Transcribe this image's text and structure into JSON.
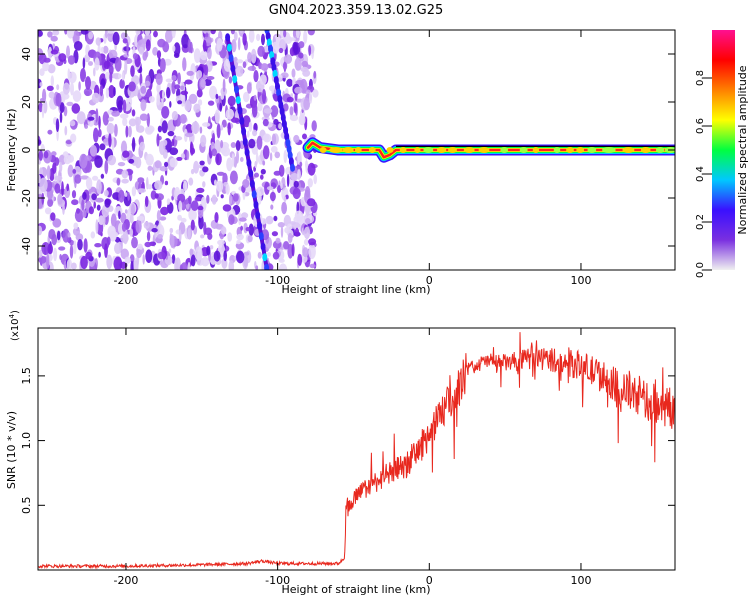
{
  "title": "GN04.2023.359.13.02.G25",
  "chart_data": [
    {
      "type": "heatmap",
      "xlabel": "Height of straight line (km)",
      "ylabel": "Frequency (Hz)",
      "xlim": [
        -258,
        162
      ],
      "ylim": [
        -50,
        50
      ],
      "x_ticks": [
        -200,
        -100,
        0,
        100
      ],
      "y_ticks": [
        -40,
        -20,
        0,
        20,
        40
      ],
      "colorbar": {
        "label": "Normalized spectral amplitude",
        "range": [
          0,
          1
        ],
        "ticks": [
          0.0,
          0.2,
          0.4,
          0.6,
          0.8
        ],
        "colormap": [
          "#f0f0f0",
          "#7a30e0",
          "#3a10ff",
          "#00c8ff",
          "#00ff40",
          "#ffff00",
          "#ff8000",
          "#ff0000",
          "#ff1090"
        ]
      },
      "noise_region_x": [
        -258,
        -75
      ],
      "diagonal_traces": [
        {
          "x": [
            -133,
            -107
          ],
          "y": [
            47,
            -50
          ]
        },
        {
          "x": [
            -107,
            -90
          ],
          "y": [
            50,
            -8
          ]
        }
      ],
      "main_line": {
        "x": [
          -80,
          -77,
          -72,
          -60,
          -40,
          -33,
          -30,
          -26,
          -22,
          -18,
          0,
          50,
          100,
          162
        ],
        "y": [
          1,
          3,
          1,
          0,
          0,
          0,
          -3,
          -2,
          0,
          0,
          0,
          0,
          0,
          0
        ]
      }
    },
    {
      "type": "line",
      "xlabel": "Height of straight line (km)",
      "ylabel": "SNR (10 * v/v)",
      "y_multiplier": "(x10",
      "y_multiplier_exp": "4",
      "y_multiplier_close": ")",
      "xlim": [
        -258,
        162
      ],
      "ylim": [
        0.0,
        1.87
      ],
      "x_ticks": [
        -200,
        -100,
        0,
        100
      ],
      "y_ticks": [
        0.5,
        1.0,
        1.5
      ],
      "color": "#e8281e",
      "series": [
        {
          "x": [
            -258,
            -200,
            -150,
            -120,
            -110,
            -100,
            -80,
            -60,
            -56,
            -55,
            -50,
            -40,
            -30,
            -20,
            -10,
            0,
            10,
            20,
            25,
            30,
            40,
            50,
            60,
            70,
            80,
            90,
            100,
            110,
            120,
            130,
            140,
            150,
            160,
            162
          ],
          "y": [
            0.03,
            0.03,
            0.04,
            0.05,
            0.07,
            0.05,
            0.05,
            0.05,
            0.09,
            0.45,
            0.55,
            0.65,
            0.72,
            0.78,
            0.88,
            1.05,
            1.25,
            1.42,
            1.55,
            1.58,
            1.62,
            1.6,
            1.62,
            1.64,
            1.63,
            1.6,
            1.58,
            1.52,
            1.45,
            1.38,
            1.32,
            1.28,
            1.25,
            1.25
          ]
        }
      ]
    }
  ]
}
